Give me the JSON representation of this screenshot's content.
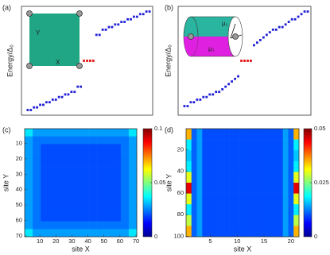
{
  "chart_data": [
    {
      "type": "scatter",
      "label": "(a)",
      "y_label": "Energy/Δ₀",
      "xlim": [
        -1,
        41
      ],
      "ylim": [
        -2.1,
        2.1
      ],
      "annotations": [
        "Y",
        "X"
      ],
      "series": [
        {
          "color": "#1f1fd6",
          "x": [
            1,
            2,
            3,
            4,
            5,
            6,
            7,
            8,
            9,
            10,
            11,
            12,
            13,
            14,
            15,
            16,
            17,
            18,
            23,
            24,
            25,
            26,
            27,
            28,
            29,
            30,
            31,
            32,
            33,
            34,
            35,
            36,
            37,
            38,
            39,
            40
          ],
          "values": [
            -1.9,
            -1.9,
            -1.8,
            -1.8,
            -1.7,
            -1.7,
            -1.6,
            -1.6,
            -1.5,
            -1.5,
            -1.4,
            -1.4,
            -1.3,
            -1.3,
            -1.2,
            -1.2,
            -1.0,
            -1.0,
            1.0,
            1.0,
            1.2,
            1.2,
            1.3,
            1.3,
            1.4,
            1.4,
            1.5,
            1.5,
            1.6,
            1.6,
            1.7,
            1.7,
            1.8,
            1.8,
            1.9,
            1.9
          ]
        },
        {
          "color": "#e01010",
          "x": [
            19,
            20,
            21,
            22
          ],
          "values": [
            0,
            0,
            0,
            0
          ]
        }
      ]
    },
    {
      "type": "scatter",
      "label": "(b)",
      "y_label": "Energy/Δ₀",
      "xlim": [
        -1,
        41
      ],
      "ylim": [
        -2.1,
        2.1
      ],
      "annotations": [
        "μ₁",
        "μ₂"
      ],
      "series": [
        {
          "color": "#1f1fd6",
          "x": [
            1,
            2,
            3,
            4,
            5,
            6,
            7,
            8,
            9,
            10,
            11,
            12,
            13,
            14,
            15,
            16,
            17,
            18,
            23,
            24,
            25,
            26,
            27,
            28,
            29,
            30,
            31,
            32,
            33,
            34,
            35,
            36,
            37,
            38,
            39,
            40
          ],
          "values": [
            -1.75,
            -1.75,
            -1.6,
            -1.6,
            -1.5,
            -1.5,
            -1.4,
            -1.4,
            -1.3,
            -1.3,
            -1.2,
            -1.2,
            -1.1,
            -1.0,
            -0.9,
            -0.8,
            -0.7,
            -0.6,
            0.6,
            0.7,
            0.8,
            0.9,
            1.0,
            1.1,
            1.2,
            1.2,
            1.3,
            1.3,
            1.4,
            1.5,
            1.6,
            1.6,
            1.7,
            1.8,
            1.9,
            1.9
          ]
        },
        {
          "color": "#e01010",
          "x": [
            19,
            20,
            21,
            22
          ],
          "values": [
            0,
            0,
            0,
            0
          ]
        }
      ]
    },
    {
      "type": "heatmap",
      "label": "(c)",
      "x_label": "site X",
      "y_label": "site Y",
      "colormap": "jet",
      "xlim": [
        0.5,
        70.5
      ],
      "ylim": [
        0.5,
        70.5
      ],
      "xticks": [
        10,
        20,
        30,
        40,
        50,
        60,
        70
      ],
      "yticks": [
        10,
        20,
        30,
        40,
        50,
        60,
        70
      ],
      "zlim": [
        0,
        0.1
      ],
      "zticks": [
        0,
        0.05,
        0.1
      ],
      "x": [
        3,
        8,
        13,
        18,
        23,
        28,
        33,
        38,
        43,
        48,
        53,
        58,
        63,
        68
      ],
      "y": [
        3,
        8,
        13,
        18,
        23,
        28,
        33,
        38,
        43,
        48,
        53,
        58,
        63,
        68
      ],
      "z": [
        [
          0.035,
          0.028,
          0.028,
          0.028,
          0.028,
          0.028,
          0.028,
          0.028,
          0.028,
          0.028,
          0.028,
          0.028,
          0.028,
          0.035
        ],
        [
          0.028,
          0.024,
          0.024,
          0.024,
          0.024,
          0.024,
          0.024,
          0.024,
          0.024,
          0.024,
          0.024,
          0.024,
          0.024,
          0.028
        ],
        [
          0.028,
          0.024,
          0.02,
          0.02,
          0.02,
          0.02,
          0.02,
          0.02,
          0.02,
          0.02,
          0.02,
          0.02,
          0.024,
          0.028
        ],
        [
          0.028,
          0.024,
          0.02,
          0.02,
          0.02,
          0.02,
          0.02,
          0.02,
          0.02,
          0.02,
          0.02,
          0.02,
          0.024,
          0.028
        ],
        [
          0.028,
          0.024,
          0.02,
          0.02,
          0.02,
          0.02,
          0.02,
          0.02,
          0.02,
          0.02,
          0.02,
          0.02,
          0.024,
          0.028
        ],
        [
          0.028,
          0.024,
          0.02,
          0.02,
          0.02,
          0.02,
          0.02,
          0.02,
          0.02,
          0.02,
          0.02,
          0.02,
          0.024,
          0.028
        ],
        [
          0.028,
          0.024,
          0.02,
          0.02,
          0.02,
          0.02,
          0.02,
          0.02,
          0.02,
          0.02,
          0.02,
          0.02,
          0.024,
          0.028
        ],
        [
          0.028,
          0.024,
          0.02,
          0.02,
          0.02,
          0.02,
          0.02,
          0.02,
          0.02,
          0.02,
          0.02,
          0.02,
          0.024,
          0.028
        ],
        [
          0.028,
          0.024,
          0.02,
          0.02,
          0.02,
          0.02,
          0.02,
          0.02,
          0.02,
          0.02,
          0.02,
          0.02,
          0.024,
          0.028
        ],
        [
          0.028,
          0.024,
          0.02,
          0.02,
          0.02,
          0.02,
          0.02,
          0.02,
          0.02,
          0.02,
          0.02,
          0.02,
          0.024,
          0.028
        ],
        [
          0.028,
          0.024,
          0.02,
          0.02,
          0.02,
          0.02,
          0.02,
          0.02,
          0.02,
          0.02,
          0.02,
          0.02,
          0.024,
          0.028
        ],
        [
          0.028,
          0.024,
          0.02,
          0.02,
          0.02,
          0.02,
          0.02,
          0.02,
          0.02,
          0.02,
          0.02,
          0.02,
          0.024,
          0.028
        ],
        [
          0.028,
          0.024,
          0.024,
          0.024,
          0.024,
          0.024,
          0.024,
          0.024,
          0.024,
          0.024,
          0.024,
          0.024,
          0.024,
          0.028
        ],
        [
          0.035,
          0.028,
          0.028,
          0.028,
          0.028,
          0.028,
          0.028,
          0.028,
          0.028,
          0.028,
          0.028,
          0.028,
          0.028,
          0.035
        ]
      ]
    },
    {
      "type": "heatmap",
      "label": "(d)",
      "x_label": "site X",
      "y_label": "site Y",
      "colormap": "jet",
      "xlim": [
        0.5,
        21.5
      ],
      "ylim": [
        0.5,
        100.5
      ],
      "xticks": [
        5,
        10,
        15,
        20
      ],
      "yticks": [
        20,
        40,
        60,
        80,
        100
      ],
      "zlim": [
        0,
        0.05
      ],
      "zticks": [
        0,
        0.025,
        0.05
      ],
      "x": [
        1,
        2,
        3,
        4,
        5,
        6,
        7,
        8,
        9,
        10,
        11,
        12,
        13,
        14,
        15,
        16,
        17,
        18,
        19,
        20,
        21
      ],
      "y": [
        5.5,
        15.5,
        25.5,
        35.5,
        45.5,
        55.5,
        65.5,
        75.5,
        85.5,
        95.5
      ],
      "z": [
        [
          0.035,
          0.011,
          0.014,
          0.01,
          0.01,
          0.01,
          0.01,
          0.01,
          0.01,
          0.01,
          0.01,
          0.01,
          0.01,
          0.01,
          0.01,
          0.01,
          0.01,
          0.01,
          0.014,
          0.011,
          0.035
        ],
        [
          0.018,
          0.011,
          0.014,
          0.01,
          0.01,
          0.01,
          0.01,
          0.01,
          0.01,
          0.01,
          0.01,
          0.01,
          0.01,
          0.01,
          0.01,
          0.01,
          0.01,
          0.01,
          0.014,
          0.011,
          0.018
        ],
        [
          0.016,
          0.011,
          0.014,
          0.01,
          0.01,
          0.01,
          0.01,
          0.01,
          0.01,
          0.01,
          0.01,
          0.01,
          0.01,
          0.01,
          0.01,
          0.01,
          0.01,
          0.01,
          0.014,
          0.011,
          0.016
        ],
        [
          0.018,
          0.011,
          0.014,
          0.01,
          0.01,
          0.01,
          0.01,
          0.01,
          0.01,
          0.01,
          0.01,
          0.01,
          0.01,
          0.01,
          0.01,
          0.01,
          0.01,
          0.01,
          0.014,
          0.011,
          0.018
        ],
        [
          0.03,
          0.011,
          0.014,
          0.01,
          0.01,
          0.01,
          0.01,
          0.01,
          0.01,
          0.01,
          0.01,
          0.01,
          0.01,
          0.01,
          0.01,
          0.01,
          0.01,
          0.01,
          0.014,
          0.011,
          0.03
        ],
        [
          0.045,
          0.011,
          0.014,
          0.01,
          0.01,
          0.01,
          0.01,
          0.01,
          0.01,
          0.01,
          0.01,
          0.01,
          0.01,
          0.01,
          0.01,
          0.01,
          0.01,
          0.01,
          0.014,
          0.011,
          0.045
        ],
        [
          0.03,
          0.011,
          0.014,
          0.01,
          0.01,
          0.01,
          0.01,
          0.01,
          0.01,
          0.01,
          0.01,
          0.01,
          0.01,
          0.01,
          0.01,
          0.01,
          0.01,
          0.01,
          0.014,
          0.011,
          0.03
        ],
        [
          0.018,
          0.011,
          0.014,
          0.01,
          0.01,
          0.01,
          0.01,
          0.01,
          0.01,
          0.01,
          0.01,
          0.01,
          0.01,
          0.01,
          0.01,
          0.01,
          0.01,
          0.01,
          0.014,
          0.011,
          0.018
        ],
        [
          0.028,
          0.011,
          0.014,
          0.01,
          0.01,
          0.01,
          0.01,
          0.01,
          0.01,
          0.01,
          0.01,
          0.01,
          0.01,
          0.01,
          0.01,
          0.01,
          0.01,
          0.01,
          0.014,
          0.011,
          0.028
        ],
        [
          0.035,
          0.011,
          0.014,
          0.01,
          0.01,
          0.01,
          0.01,
          0.01,
          0.01,
          0.01,
          0.01,
          0.01,
          0.01,
          0.01,
          0.01,
          0.01,
          0.01,
          0.01,
          0.014,
          0.011,
          0.035
        ]
      ]
    }
  ]
}
